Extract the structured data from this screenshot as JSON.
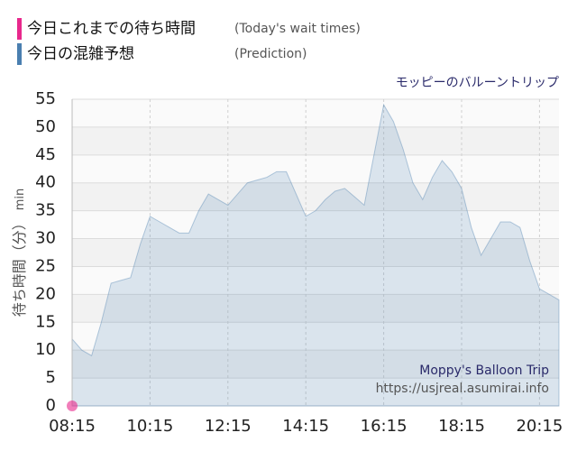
{
  "chart_data": {
    "type": "area",
    "title": "モッピーのバルーントリップ",
    "ylabel": "待ち時間（分）",
    "yunit": "min",
    "watermark": [
      "Moppy's Balloon Trip",
      "https://usjreal.asumirai.info"
    ],
    "xlim": [
      495,
      1245
    ],
    "xticks": [
      {
        "value": 495,
        "label": "08:15"
      },
      {
        "value": 615,
        "label": "10:15"
      },
      {
        "value": 735,
        "label": "12:15"
      },
      {
        "value": 855,
        "label": "14:15"
      },
      {
        "value": 975,
        "label": "16:15"
      },
      {
        "value": 1095,
        "label": "18:15"
      },
      {
        "value": 1215,
        "label": "20:15"
      }
    ],
    "ylim": [
      0,
      55
    ],
    "yticks": [
      0,
      5,
      10,
      15,
      20,
      25,
      30,
      35,
      40,
      45,
      50,
      55
    ],
    "grid": true,
    "series": [
      {
        "name": "今日これまでの待ち時間",
        "label_en": "(Today's wait times)",
        "color": "#e8288c",
        "kind": "point",
        "x": [
          495
        ],
        "values": [
          0
        ]
      },
      {
        "name": "今日の混雑予想",
        "label_en": "(Prediction)",
        "color": "#4a7fb0",
        "kind": "area",
        "x": [
          495,
          510,
          525,
          540,
          555,
          570,
          585,
          600,
          615,
          630,
          645,
          660,
          675,
          690,
          705,
          720,
          735,
          750,
          765,
          780,
          795,
          810,
          825,
          840,
          855,
          870,
          885,
          900,
          915,
          930,
          945,
          960,
          975,
          990,
          1005,
          1020,
          1035,
          1050,
          1065,
          1080,
          1095,
          1110,
          1125,
          1140,
          1155,
          1170,
          1185,
          1200,
          1215,
          1230,
          1245
        ],
        "values": [
          12,
          10,
          9,
          15,
          22,
          22.5,
          23,
          29,
          34,
          33,
          32,
          31,
          31,
          35,
          38,
          37,
          36,
          38,
          40,
          40.5,
          41,
          42,
          42,
          38,
          34,
          35,
          37,
          38.5,
          39,
          37.5,
          36,
          45,
          54,
          51,
          46,
          40,
          37,
          41,
          44,
          42,
          39,
          32,
          27,
          30,
          33,
          33,
          32,
          26,
          21,
          20,
          19
        ]
      }
    ]
  }
}
